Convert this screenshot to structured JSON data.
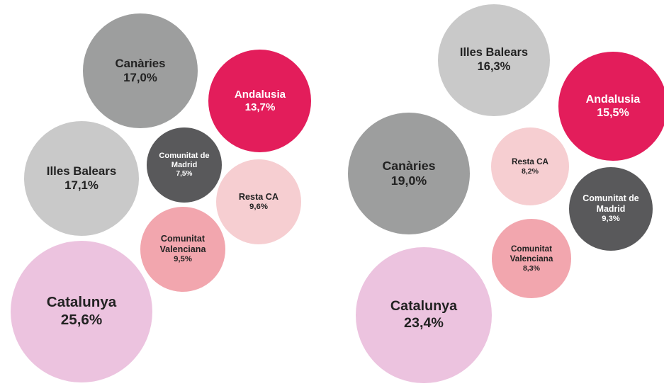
{
  "chart_data": [
    {
      "type": "bubble",
      "categories": [
        "Canàries",
        "Andalusia",
        "Illes Balears",
        "Comunitat de Madrid",
        "Resta CA",
        "Comunitat Valenciana",
        "Catalunya"
      ],
      "values": [
        17.0,
        13.7,
        17.1,
        7.5,
        9.6,
        9.5,
        25.6
      ],
      "value_labels": [
        "17,0%",
        "13,7%",
        "17,1%",
        "7,5%",
        "9,6%",
        "9,5%",
        "25,6%"
      ],
      "colors": [
        "#9d9e9e",
        "#e31d5b",
        "#c9c9c9",
        "#59595b",
        "#f6ced1",
        "#f2a6ae",
        "#ecc3df"
      ]
    },
    {
      "type": "bubble",
      "categories": [
        "Illes Balears",
        "Andalusia",
        "Canàries",
        "Resta CA",
        "Comunitat de Madrid",
        "Comunitat Valenciana",
        "Catalunya"
      ],
      "values": [
        16.3,
        15.5,
        19.0,
        8.2,
        9.3,
        8.3,
        23.4
      ],
      "value_labels": [
        "16,3%",
        "15,5%",
        "19,0%",
        "8,2%",
        "9,3%",
        "8,3%",
        "23,4%"
      ],
      "colors": [
        "#c9c9c9",
        "#e31d5b",
        "#9d9e9e",
        "#f6ced1",
        "#59595b",
        "#f2a6ae",
        "#ecc3df"
      ]
    }
  ]
}
